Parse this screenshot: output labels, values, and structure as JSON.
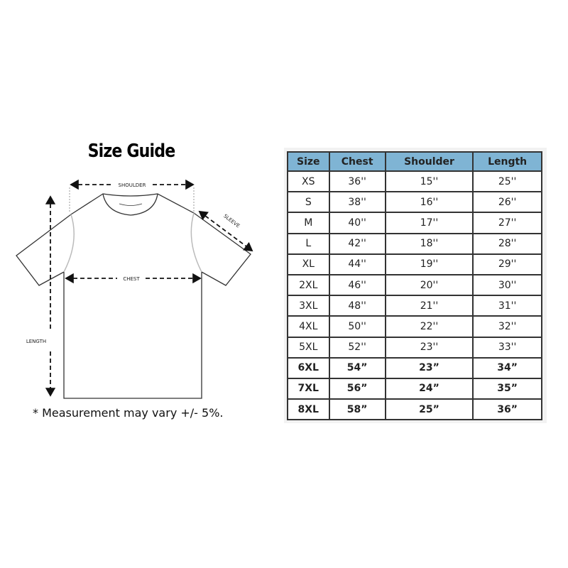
{
  "title": "Size Guide",
  "diagram": {
    "shoulder_label": "SHOULDER",
    "sleeve_label": "SLEEVE",
    "chest_label": "CHEST",
    "length_label": "LENGTH"
  },
  "note": "* Measurement may vary +/- 5%.",
  "table": {
    "header_color": "#7fb4d4",
    "headers": [
      "Size",
      "Chest",
      "Shoulder",
      "Length"
    ],
    "rows": [
      [
        "XS",
        "36''",
        "15''",
        "25''"
      ],
      [
        "S",
        "38''",
        "16''",
        "26''"
      ],
      [
        "M",
        "40''",
        "17''",
        "27''"
      ],
      [
        "L",
        "42''",
        "18''",
        "28''"
      ],
      [
        "XL",
        "44''",
        "19''",
        "29''"
      ],
      [
        "2XL",
        "46''",
        "20''",
        "30''"
      ],
      [
        "3XL",
        "48''",
        "21''",
        "31''"
      ],
      [
        "4XL",
        "50''",
        "22''",
        "32''"
      ],
      [
        "5XL",
        "52''",
        "23''",
        "33''"
      ],
      [
        "6XL",
        "54”",
        "23”",
        "34”"
      ],
      [
        "7XL",
        "56”",
        "24”",
        "35”"
      ],
      [
        "8XL",
        "58”",
        "25”",
        "36”"
      ]
    ]
  }
}
